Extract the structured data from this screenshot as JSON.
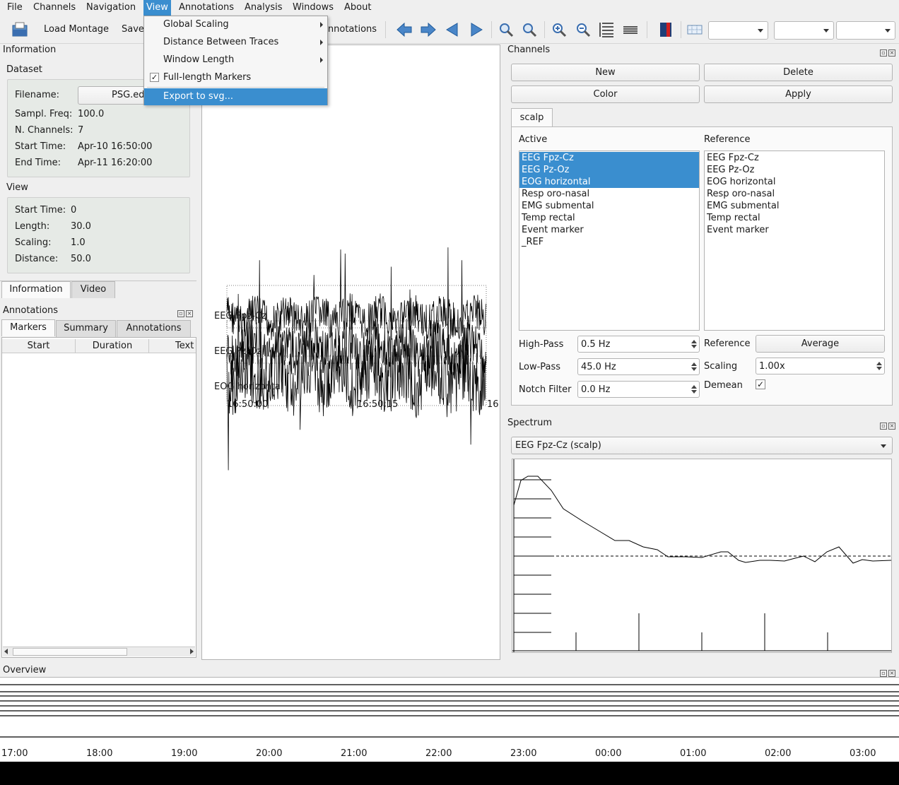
{
  "menubar": [
    "File",
    "Channels",
    "Navigation",
    "View",
    "Annotations",
    "Analysis",
    "Windows",
    "About"
  ],
  "toolbar": {
    "load_montage": "Load Montage",
    "save": "Save",
    "annotations": "Annotations"
  },
  "view_menu": {
    "global_scaling": "Global Scaling",
    "distance_between_traces": "Distance Between Traces",
    "window_length": "Window Length",
    "full_length_markers": "Full-length Markers",
    "full_length_markers_checked": true,
    "export_to_svg": "Export to svg..."
  },
  "information": {
    "title": "Information",
    "dataset_title": "Dataset",
    "filename_label": "Filename:",
    "filename_value": "PSG.ed",
    "sampl_freq_label": "Sampl. Freq:",
    "sampl_freq_value": "100.0",
    "n_channels_label": "N. Channels:",
    "n_channels_value": "7",
    "start_time_label": "Start Time:",
    "start_time_value": "Apr-10 16:50:00",
    "end_time_label": "End Time:",
    "end_time_value": "Apr-11 16:20:00",
    "view_title": "View",
    "view_start_label": "Start Time:",
    "view_start_value": "0",
    "length_label": "Length:",
    "length_value": "30.0",
    "scaling_label": "Scaling:",
    "scaling_value": "1.0",
    "distance_label": "Distance:",
    "distance_value": "50.0",
    "tabs": [
      "Information",
      "Video"
    ]
  },
  "annotations": {
    "title": "Annotations",
    "tabs": [
      "Markers",
      "Summary",
      "Annotations"
    ],
    "columns": [
      "Start",
      "Duration",
      "Text"
    ]
  },
  "traces": {
    "labels": [
      "EEG Fpz-Cz",
      "EEG Pz-Oz",
      "EOG horizontal"
    ],
    "time_ticks": [
      "16:50:00",
      "16:50:15",
      "16:"
    ]
  },
  "channels": {
    "title": "Channels",
    "new": "New",
    "delete": "Delete",
    "color": "Color",
    "apply": "Apply",
    "group_tab": "scalp",
    "active_label": "Active",
    "reference_label": "Reference",
    "active_list": [
      "EEG Fpz-Cz",
      "EEG Pz-Oz",
      "EOG horizontal",
      "Resp oro-nasal",
      "EMG submental",
      "Temp rectal",
      "Event marker",
      "_REF"
    ],
    "active_selected": [
      0,
      1,
      2
    ],
    "reference_list": [
      "EEG Fpz-Cz",
      "EEG Pz-Oz",
      "EOG horizontal",
      "Resp oro-nasal",
      "EMG submental",
      "Temp rectal",
      "Event marker"
    ],
    "high_pass_label": "High-Pass",
    "high_pass_value": "0.5 Hz",
    "low_pass_label": "Low-Pass",
    "low_pass_value": "45.0 Hz",
    "notch_label": "Notch Filter",
    "notch_value": "0.0 Hz",
    "reference_opt_label": "Reference",
    "reference_button": "Average",
    "scaling_label": "Scaling",
    "scaling_value": "1.00x",
    "demean_label": "Demean",
    "demean_checked": true
  },
  "spectrum": {
    "title": "Spectrum",
    "selected": "EEG Fpz-Cz (scalp)"
  },
  "overview": {
    "title": "Overview",
    "ticks": [
      "17:00",
      "18:00",
      "19:00",
      "20:00",
      "21:00",
      "22:00",
      "23:00",
      "00:00",
      "01:00",
      "02:00",
      "03:00"
    ]
  },
  "colors": {
    "selection": "#3a8ecf",
    "group_box": "#e6eae6"
  }
}
